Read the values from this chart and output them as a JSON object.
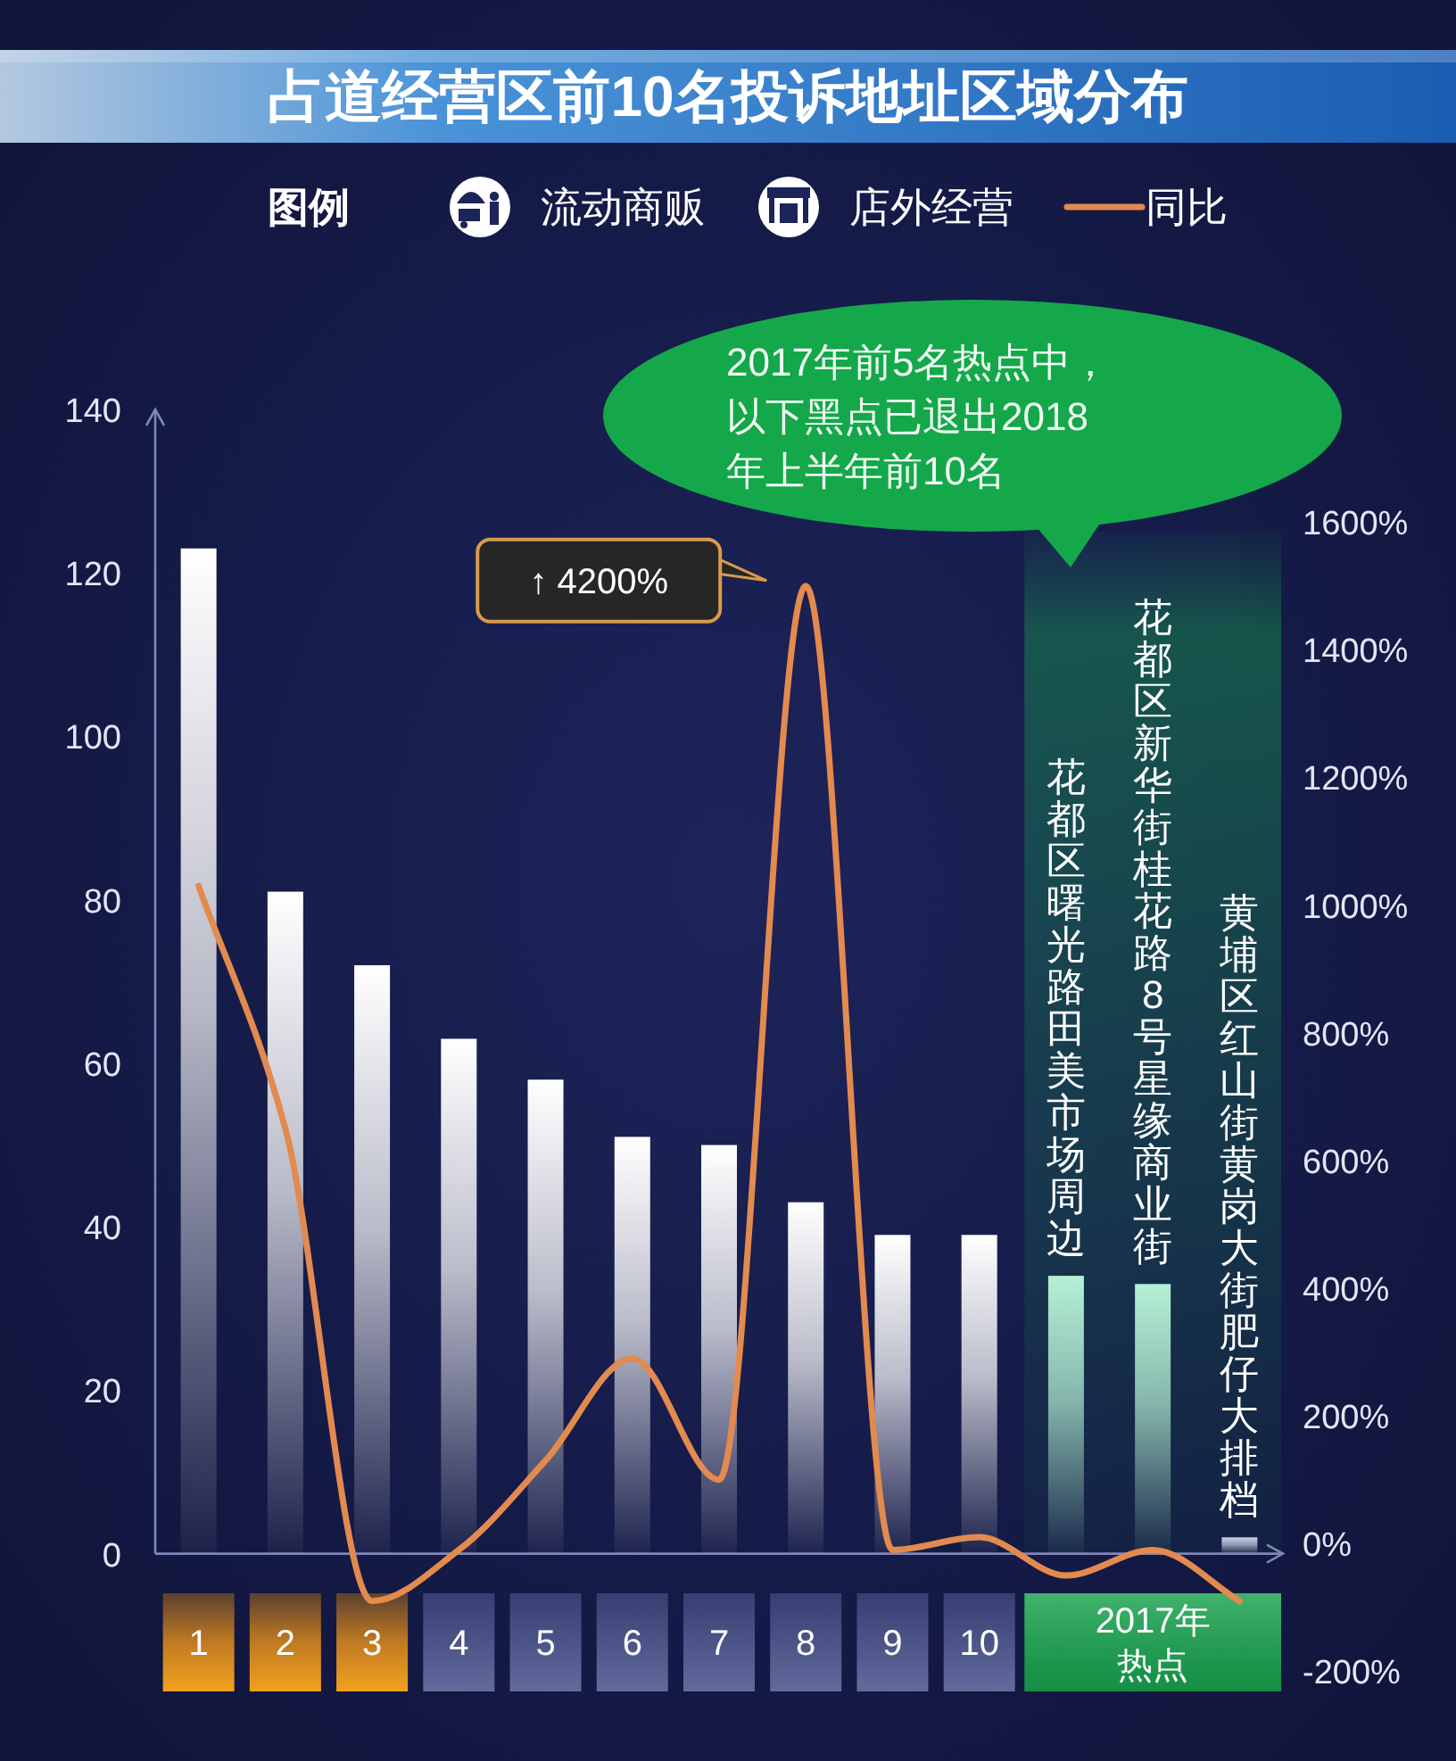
{
  "chart_data": {
    "type": "bar",
    "title": "占道经营区前10名投诉地址区域分布",
    "legend_title": "图例",
    "legend": "top",
    "categories": [
      "1",
      "2",
      "3",
      "4",
      "5",
      "6",
      "7",
      "8",
      "9",
      "10",
      "花都区曙光路田美市场周边",
      "花都区新华街桂花路8号星缘商业街",
      "黄埔区红山街黄岗大街肥仔大排档"
    ],
    "series": [
      {
        "colors": [
          "#ffffff",
          "#ffffff",
          "#ffffff",
          "#ffffff",
          "#ffffff",
          "#ffffff",
          "#ffffff",
          "#ffffff",
          "#ffffff",
          "#ffffff",
          "#b5f0d5",
          "#b5f0d5",
          "#c9cfe6"
        ],
        "values": [
          123,
          81,
          72,
          63,
          58,
          51,
          50,
          43,
          39,
          39,
          34,
          33,
          2
        ]
      },
      {
        "type": "line",
        "name": "同比",
        "color": "#e38a4f",
        "axis": "y2",
        "values": [
          1030,
          650,
          -90,
          -10,
          130,
          290,
          100,
          1500,
          -10,
          10,
          -50,
          -10,
          -90
        ]
      }
    ],
    "ylim": [
      0,
      140
    ],
    "yticks": [
      0,
      20,
      40,
      60,
      80,
      100,
      120,
      140
    ],
    "y2lim": [
      -200,
      1600
    ],
    "y2ticks": [
      {
        "value": -200,
        "label": "-200%"
      },
      {
        "value": 0,
        "label": "0%"
      },
      {
        "value": 200,
        "label": "200%"
      },
      {
        "value": 400,
        "label": "400%"
      },
      {
        "value": 600,
        "label": "600%"
      },
      {
        "value": 800,
        "label": "800%"
      },
      {
        "value": 1000,
        "label": "1000%"
      },
      {
        "value": 1200,
        "label": "1200%"
      },
      {
        "value": 1400,
        "label": "1400%"
      },
      {
        "value": 1600,
        "label": "1600%"
      }
    ],
    "bands": [
      {
        "axis": "x",
        "from": "花都区曙光路田美市场周边",
        "to": "黄埔区红山街黄岗大街肥仔大排档",
        "label": "2017年热点",
        "color": "#17a34e"
      }
    ],
    "annotations": [
      "流动商贩",
      "店外经营",
      "2017年前5名热点中，以下黑点已退出2018年上半年前10名",
      "↑ 4200%"
    ]
  }
}
